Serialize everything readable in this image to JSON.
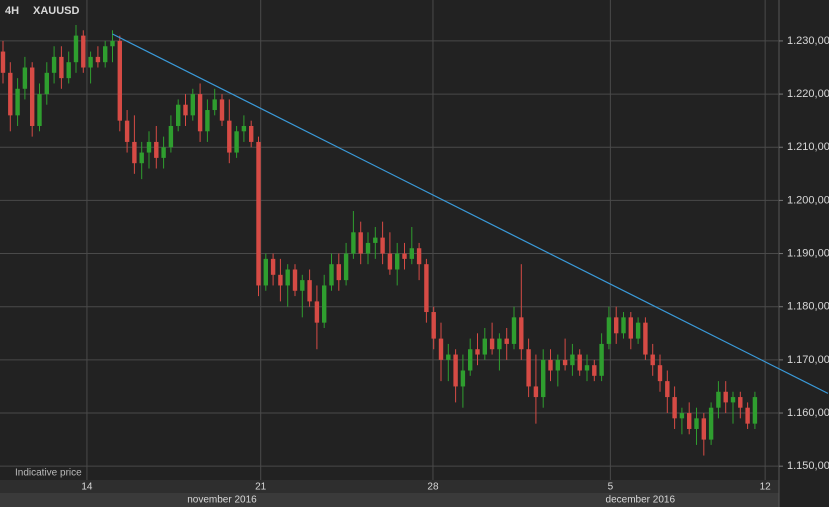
{
  "chart_data": {
    "type": "candlestick",
    "title": "XAUUSD",
    "timeframe": "4H",
    "annotation": "Indicative price",
    "up_color": "#2f9e2f",
    "down_color": "#d64b45",
    "trendline_color": "#3a9ad9",
    "ylim": [
      1.1474,
      1.2377
    ],
    "xlim": [
      -0.41,
      106.3
    ],
    "yticks": [
      {
        "value": 1.15,
        "label": "1.150,00"
      },
      {
        "value": 1.16,
        "label": "1.160,00"
      },
      {
        "value": 1.17,
        "label": "1.170,00"
      },
      {
        "value": 1.18,
        "label": "1.180,00"
      },
      {
        "value": 1.19,
        "label": "1.190,00"
      },
      {
        "value": 1.2,
        "label": "1.200,00"
      },
      {
        "value": 1.21,
        "label": "1.210,00"
      },
      {
        "value": 1.22,
        "label": "1.220,00"
      },
      {
        "value": 1.23,
        "label": "1.230,00"
      }
    ],
    "xticks": [
      {
        "value": 11.5,
        "label": "14"
      },
      {
        "value": 35.3,
        "label": "21"
      },
      {
        "value": 58.9,
        "label": "28"
      },
      {
        "value": 83.2,
        "label": "5"
      },
      {
        "value": 104.4,
        "label": "12"
      }
    ],
    "months": [
      {
        "value": 30,
        "label": "november 2016"
      },
      {
        "value": 87.3,
        "label": "december 2016"
      }
    ],
    "grid": true,
    "trendline": {
      "from": [
        15,
        1.2313
      ],
      "to": [
        113,
        1.1637
      ]
    },
    "candles": [
      [
        1.228,
        1.23,
        1.222,
        1.224
      ],
      [
        1.224,
        1.226,
        1.213,
        1.216
      ],
      [
        1.216,
        1.223,
        1.214,
        1.221
      ],
      [
        1.221,
        1.227,
        1.219,
        1.225
      ],
      [
        1.225,
        1.226,
        1.212,
        1.214
      ],
      [
        1.214,
        1.222,
        1.213,
        1.22
      ],
      [
        1.22,
        1.226,
        1.218,
        1.224
      ],
      [
        1.224,
        1.229,
        1.222,
        1.227
      ],
      [
        1.227,
        1.229,
        1.221,
        1.223
      ],
      [
        1.223,
        1.228,
        1.222,
        1.226
      ],
      [
        1.226,
        1.233,
        1.224,
        1.231
      ],
      [
        1.231,
        1.232,
        1.224,
        1.225
      ],
      [
        1.225,
        1.228,
        1.222,
        1.227
      ],
      [
        1.227,
        1.229,
        1.225,
        1.226
      ],
      [
        1.226,
        1.23,
        1.225,
        1.229
      ],
      [
        1.229,
        1.232,
        1.226,
        1.23
      ],
      [
        1.23,
        1.231,
        1.213,
        1.215
      ],
      [
        1.215,
        1.217,
        1.209,
        1.211
      ],
      [
        1.211,
        1.216,
        1.205,
        1.207
      ],
      [
        1.207,
        1.211,
        1.204,
        1.209
      ],
      [
        1.209,
        1.213,
        1.206,
        1.211
      ],
      [
        1.211,
        1.214,
        1.206,
        1.208
      ],
      [
        1.208,
        1.212,
        1.206,
        1.21
      ],
      [
        1.21,
        1.216,
        1.209,
        1.214
      ],
      [
        1.214,
        1.219,
        1.213,
        1.218
      ],
      [
        1.218,
        1.22,
        1.214,
        1.216
      ],
      [
        1.216,
        1.221,
        1.215,
        1.22
      ],
      [
        1.22,
        1.222,
        1.211,
        1.213
      ],
      [
        1.213,
        1.219,
        1.211,
        1.217
      ],
      [
        1.217,
        1.221,
        1.216,
        1.219
      ],
      [
        1.219,
        1.22,
        1.214,
        1.215
      ],
      [
        1.215,
        1.219,
        1.207,
        1.209
      ],
      [
        1.209,
        1.214,
        1.208,
        1.213
      ],
      [
        1.213,
        1.216,
        1.211,
        1.214
      ],
      [
        1.214,
        1.215,
        1.21,
        1.211
      ],
      [
        1.211,
        1.212,
        1.182,
        1.184
      ],
      [
        1.184,
        1.19,
        1.183,
        1.189
      ],
      [
        1.189,
        1.19,
        1.184,
        1.186
      ],
      [
        1.186,
        1.189,
        1.181,
        1.184
      ],
      [
        1.184,
        1.188,
        1.18,
        1.187
      ],
      [
        1.187,
        1.188,
        1.182,
        1.183
      ],
      [
        1.183,
        1.186,
        1.178,
        1.185
      ],
      [
        1.185,
        1.187,
        1.18,
        1.181
      ],
      [
        1.181,
        1.184,
        1.172,
        1.177
      ],
      [
        1.177,
        1.186,
        1.176,
        1.184
      ],
      [
        1.184,
        1.19,
        1.183,
        1.188
      ],
      [
        1.188,
        1.19,
        1.183,
        1.185
      ],
      [
        1.185,
        1.192,
        1.184,
        1.19
      ],
      [
        1.19,
        1.198,
        1.189,
        1.194
      ],
      [
        1.194,
        1.196,
        1.188,
        1.19
      ],
      [
        1.19,
        1.194,
        1.188,
        1.192
      ],
      [
        1.192,
        1.195,
        1.189,
        1.193
      ],
      [
        1.193,
        1.196,
        1.188,
        1.19
      ],
      [
        1.19,
        1.194,
        1.186,
        1.187
      ],
      [
        1.187,
        1.192,
        1.184,
        1.19
      ],
      [
        1.19,
        1.192,
        1.187,
        1.189
      ],
      [
        1.189,
        1.195,
        1.188,
        1.191
      ],
      [
        1.191,
        1.192,
        1.185,
        1.188
      ],
      [
        1.188,
        1.189,
        1.177,
        1.179
      ],
      [
        1.179,
        1.18,
        1.172,
        1.174
      ],
      [
        1.174,
        1.177,
        1.166,
        1.17
      ],
      [
        1.17,
        1.173,
        1.166,
        1.171
      ],
      [
        1.171,
        1.172,
        1.162,
        1.165
      ],
      [
        1.165,
        1.171,
        1.161,
        1.168
      ],
      [
        1.168,
        1.174,
        1.167,
        1.172
      ],
      [
        1.172,
        1.175,
        1.169,
        1.171
      ],
      [
        1.171,
        1.176,
        1.17,
        1.174
      ],
      [
        1.174,
        1.177,
        1.171,
        1.172
      ],
      [
        1.172,
        1.175,
        1.168,
        1.174
      ],
      [
        1.174,
        1.176,
        1.17,
        1.173
      ],
      [
        1.173,
        1.18,
        1.172,
        1.178
      ],
      [
        1.178,
        1.188,
        1.17,
        1.172
      ],
      [
        1.172,
        1.174,
        1.163,
        1.165
      ],
      [
        1.165,
        1.171,
        1.158,
        1.163
      ],
      [
        1.163,
        1.172,
        1.161,
        1.17
      ],
      [
        1.17,
        1.172,
        1.166,
        1.168
      ],
      [
        1.168,
        1.171,
        1.165,
        1.17
      ],
      [
        1.17,
        1.174,
        1.168,
        1.169
      ],
      [
        1.169,
        1.173,
        1.167,
        1.171
      ],
      [
        1.171,
        1.172,
        1.167,
        1.168
      ],
      [
        1.168,
        1.171,
        1.166,
        1.169
      ],
      [
        1.169,
        1.17,
        1.166,
        1.167
      ],
      [
        1.167,
        1.175,
        1.166,
        1.173
      ],
      [
        1.173,
        1.18,
        1.172,
        1.178
      ],
      [
        1.178,
        1.18,
        1.173,
        1.175
      ],
      [
        1.175,
        1.179,
        1.174,
        1.178
      ],
      [
        1.178,
        1.179,
        1.172,
        1.174
      ],
      [
        1.174,
        1.178,
        1.173,
        1.177
      ],
      [
        1.177,
        1.178,
        1.17,
        1.171
      ],
      [
        1.171,
        1.173,
        1.167,
        1.169
      ],
      [
        1.169,
        1.171,
        1.164,
        1.166
      ],
      [
        1.166,
        1.168,
        1.16,
        1.163
      ],
      [
        1.163,
        1.165,
        1.157,
        1.159
      ],
      [
        1.159,
        1.161,
        1.156,
        1.16
      ],
      [
        1.16,
        1.162,
        1.156,
        1.157
      ],
      [
        1.157,
        1.161,
        1.154,
        1.159
      ],
      [
        1.159,
        1.16,
        1.152,
        1.155
      ],
      [
        1.155,
        1.162,
        1.154,
        1.161
      ],
      [
        1.161,
        1.166,
        1.159,
        1.164
      ],
      [
        1.164,
        1.166,
        1.16,
        1.162
      ],
      [
        1.162,
        1.164,
        1.158,
        1.163
      ],
      [
        1.163,
        1.164,
        1.159,
        1.161
      ],
      [
        1.161,
        1.162,
        1.157,
        1.158
      ],
      [
        1.158,
        1.164,
        1.157,
        1.163
      ]
    ]
  }
}
